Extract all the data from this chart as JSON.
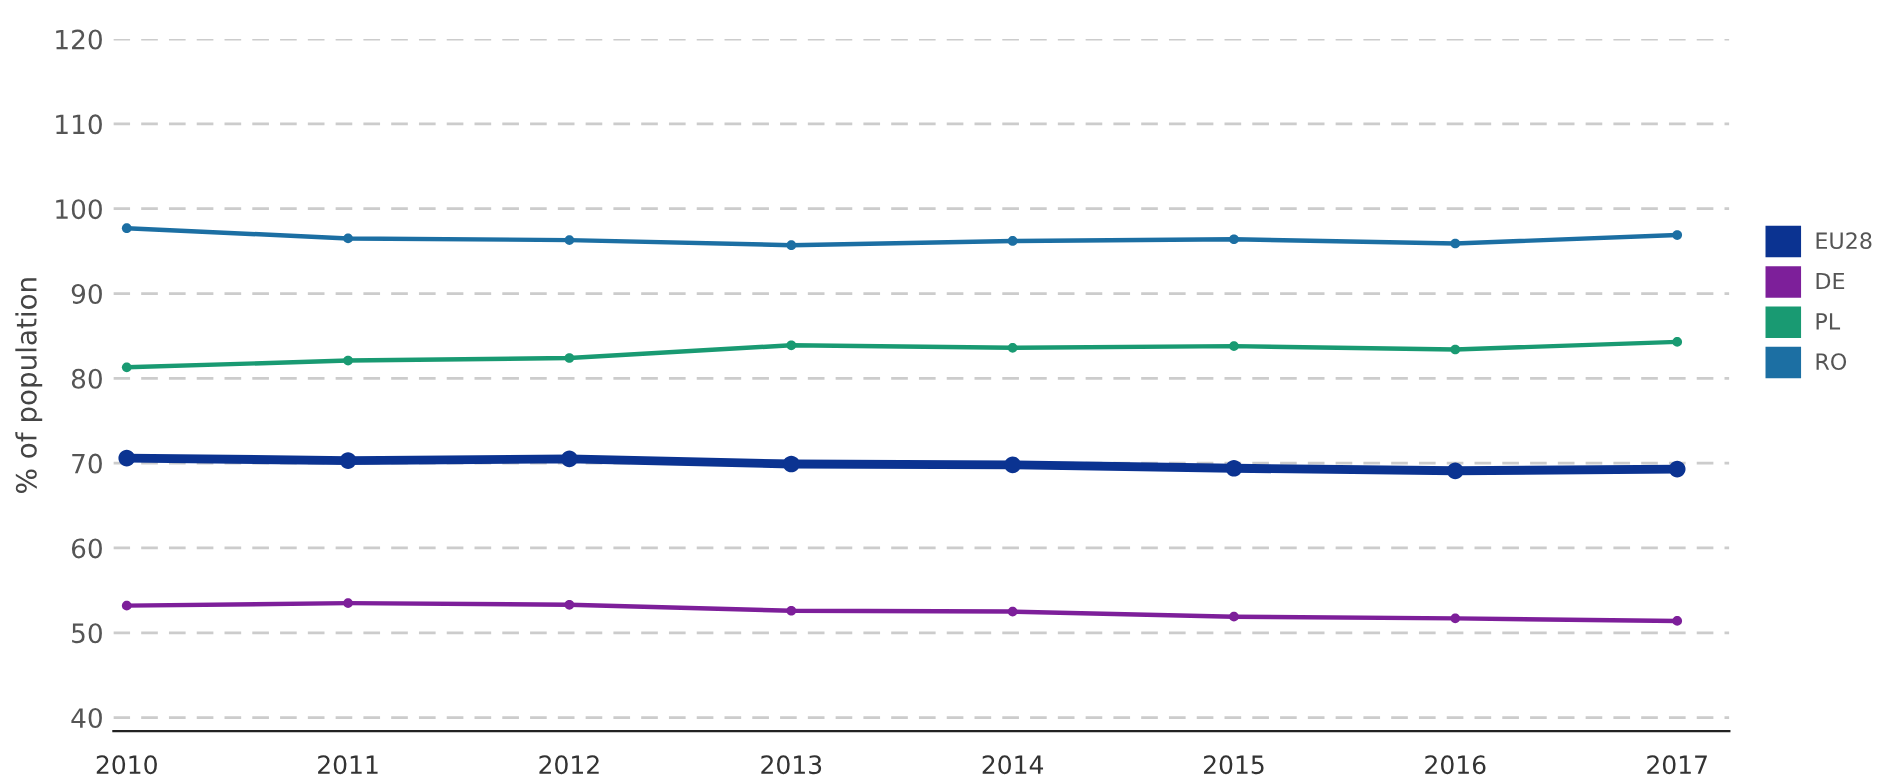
{
  "chart_data": {
    "type": "line",
    "ylabel": "% of population",
    "x": [
      "2010",
      "2011",
      "2012",
      "2013",
      "2014",
      "2015",
      "2016",
      "2017"
    ],
    "series": [
      {
        "name": "EU28",
        "color": "#0b3391",
        "values": [
          70.6,
          70.3,
          70.5,
          69.9,
          69.8,
          69.4,
          69.1,
          69.3
        ]
      },
      {
        "name": "DE",
        "color": "#7d1f9a",
        "values": [
          53.2,
          53.5,
          53.3,
          52.6,
          52.5,
          51.9,
          51.7,
          51.4
        ]
      },
      {
        "name": "PL",
        "color": "#199a72",
        "values": [
          81.3,
          82.1,
          82.4,
          83.9,
          83.6,
          83.8,
          83.4,
          84.3
        ]
      },
      {
        "name": "RO",
        "color": "#1c6fa3",
        "values": [
          97.7,
          96.5,
          96.3,
          95.7,
          96.2,
          96.4,
          95.9,
          96.9
        ]
      }
    ],
    "xlim": [
      "2009-12-10",
      "2017-03-28"
    ],
    "xticks": [
      "2010",
      "2011",
      "2012",
      "2013",
      "2014",
      "2015",
      "2016",
      "2017"
    ],
    "ylim": [
      38.4,
      120
    ],
    "yticks": [
      40,
      50,
      60,
      70,
      80,
      90,
      100,
      110,
      120
    ],
    "grid": "y",
    "legend": "right",
    "marker": "circle",
    "line_style": "solid"
  }
}
